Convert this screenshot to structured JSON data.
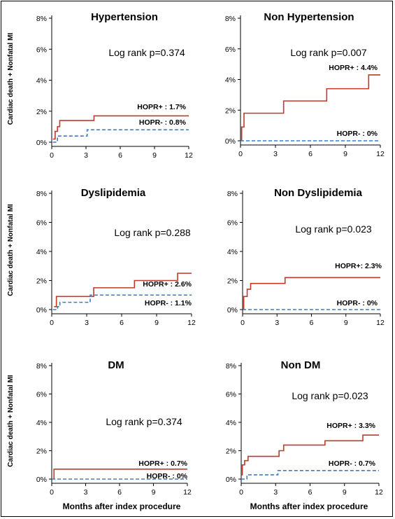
{
  "colors": {
    "hopr_pos": "#c0392b",
    "hopr_neg": "#3a7cc8"
  },
  "shared": {
    "ylabel": "Cardiac death + Nonfatal MI",
    "xlabel": "Months after index procedure",
    "y_ticks": [
      "0%",
      "2%",
      "4%",
      "6%",
      "8%"
    ],
    "x_ticks": [
      "0",
      "3",
      "6",
      "9",
      "12"
    ]
  },
  "chart_data": [
    {
      "type": "line",
      "title": "Hypertension",
      "log_rank": "Log rank p=0.374",
      "xlim": [
        0,
        12
      ],
      "ylim": [
        0,
        8
      ],
      "series": [
        {
          "name": "HOPR+ : 1.7%",
          "style": "solid",
          "x": [
            0.1,
            0.3,
            0.5,
            0.7,
            3.7,
            12
          ],
          "y": [
            0.2,
            0.7,
            1.0,
            1.4,
            1.7,
            1.7
          ]
        },
        {
          "name": "HOPR- : 0.8%",
          "style": "dashed",
          "x": [
            0.1,
            0.5,
            3.1,
            12
          ],
          "y": [
            0.0,
            0.4,
            0.8,
            0.8
          ]
        }
      ]
    },
    {
      "type": "line",
      "title": "Non Hypertension",
      "log_rank": "Log rank p=0.007",
      "xlim": [
        0,
        12
      ],
      "ylim": [
        0,
        8
      ],
      "series": [
        {
          "name": "HOPR+ : 4.4%",
          "style": "solid",
          "x": [
            0.0,
            0.1,
            0.3,
            3.7,
            7.4,
            11.0,
            12
          ],
          "y": [
            0.0,
            0.9,
            1.8,
            2.6,
            3.4,
            4.3,
            4.3
          ]
        },
        {
          "name": "HOPR- : 0%",
          "style": "dashed",
          "x": [
            0.0,
            12
          ],
          "y": [
            0.0,
            0.0
          ]
        }
      ]
    },
    {
      "type": "line",
      "title": "Dyslipidemia",
      "log_rank": "Log rank p=0.288",
      "xlim": [
        0,
        12
      ],
      "ylim": [
        0,
        8
      ],
      "series": [
        {
          "name": "HOPR+ : 2.6%",
          "style": "solid",
          "x": [
            0.2,
            0.4,
            3.6,
            7.1,
            10.8,
            12
          ],
          "y": [
            0.2,
            0.9,
            1.5,
            2.0,
            2.5,
            2.5
          ]
        },
        {
          "name": "HOPR- : 1.1%",
          "style": "dashed",
          "x": [
            0.1,
            0.5,
            0.7,
            3.0,
            3.3,
            12
          ],
          "y": [
            0.0,
            0.2,
            0.5,
            0.5,
            1.0,
            1.0
          ]
        }
      ]
    },
    {
      "type": "line",
      "title": "Non Dyslipidemia",
      "log_rank": "Log rank p=0.023",
      "xlim": [
        0,
        12
      ],
      "ylim": [
        0,
        8
      ],
      "series": [
        {
          "name": "HOPR+: 2.3%",
          "style": "solid",
          "x": [
            0.0,
            0.1,
            0.4,
            0.7,
            3.7,
            12
          ],
          "y": [
            0.0,
            0.9,
            1.4,
            1.8,
            2.2,
            2.2
          ]
        },
        {
          "name": "HOPR- : 0%",
          "style": "dashed",
          "x": [
            0.0,
            12
          ],
          "y": [
            0.0,
            0.0
          ]
        }
      ]
    },
    {
      "type": "line",
      "title": "DM",
      "log_rank": "Log rank p=0.374",
      "xlim": [
        0,
        12
      ],
      "ylim": [
        0,
        8
      ],
      "series": [
        {
          "name": "HOPR+ : 0.7%",
          "style": "solid",
          "x": [
            0.2,
            0.2,
            12
          ],
          "y": [
            0.0,
            0.7,
            0.7
          ]
        },
        {
          "name": "HOPR- : 0%",
          "style": "dashed",
          "x": [
            0.0,
            12
          ],
          "y": [
            0.0,
            0.0
          ]
        }
      ]
    },
    {
      "type": "line",
      "title": "Non DM",
      "log_rank": "Log rank p=0.023",
      "xlim": [
        0,
        12
      ],
      "ylim": [
        0,
        8
      ],
      "series": [
        {
          "name": "HOPR+ : 3.3%",
          "style": "solid",
          "x": [
            0.0,
            0.1,
            0.3,
            0.6,
            3.3,
            3.7,
            7.3,
            10.6,
            12
          ],
          "y": [
            0.3,
            1.0,
            1.3,
            1.6,
            2.0,
            2.4,
            2.7,
            3.1,
            3.1
          ]
        },
        {
          "name": "HOPR- : 0.7%",
          "style": "dashed",
          "x": [
            0.0,
            0.5,
            3.2,
            12
          ],
          "y": [
            0.0,
            0.3,
            0.6,
            0.6
          ]
        }
      ]
    }
  ]
}
